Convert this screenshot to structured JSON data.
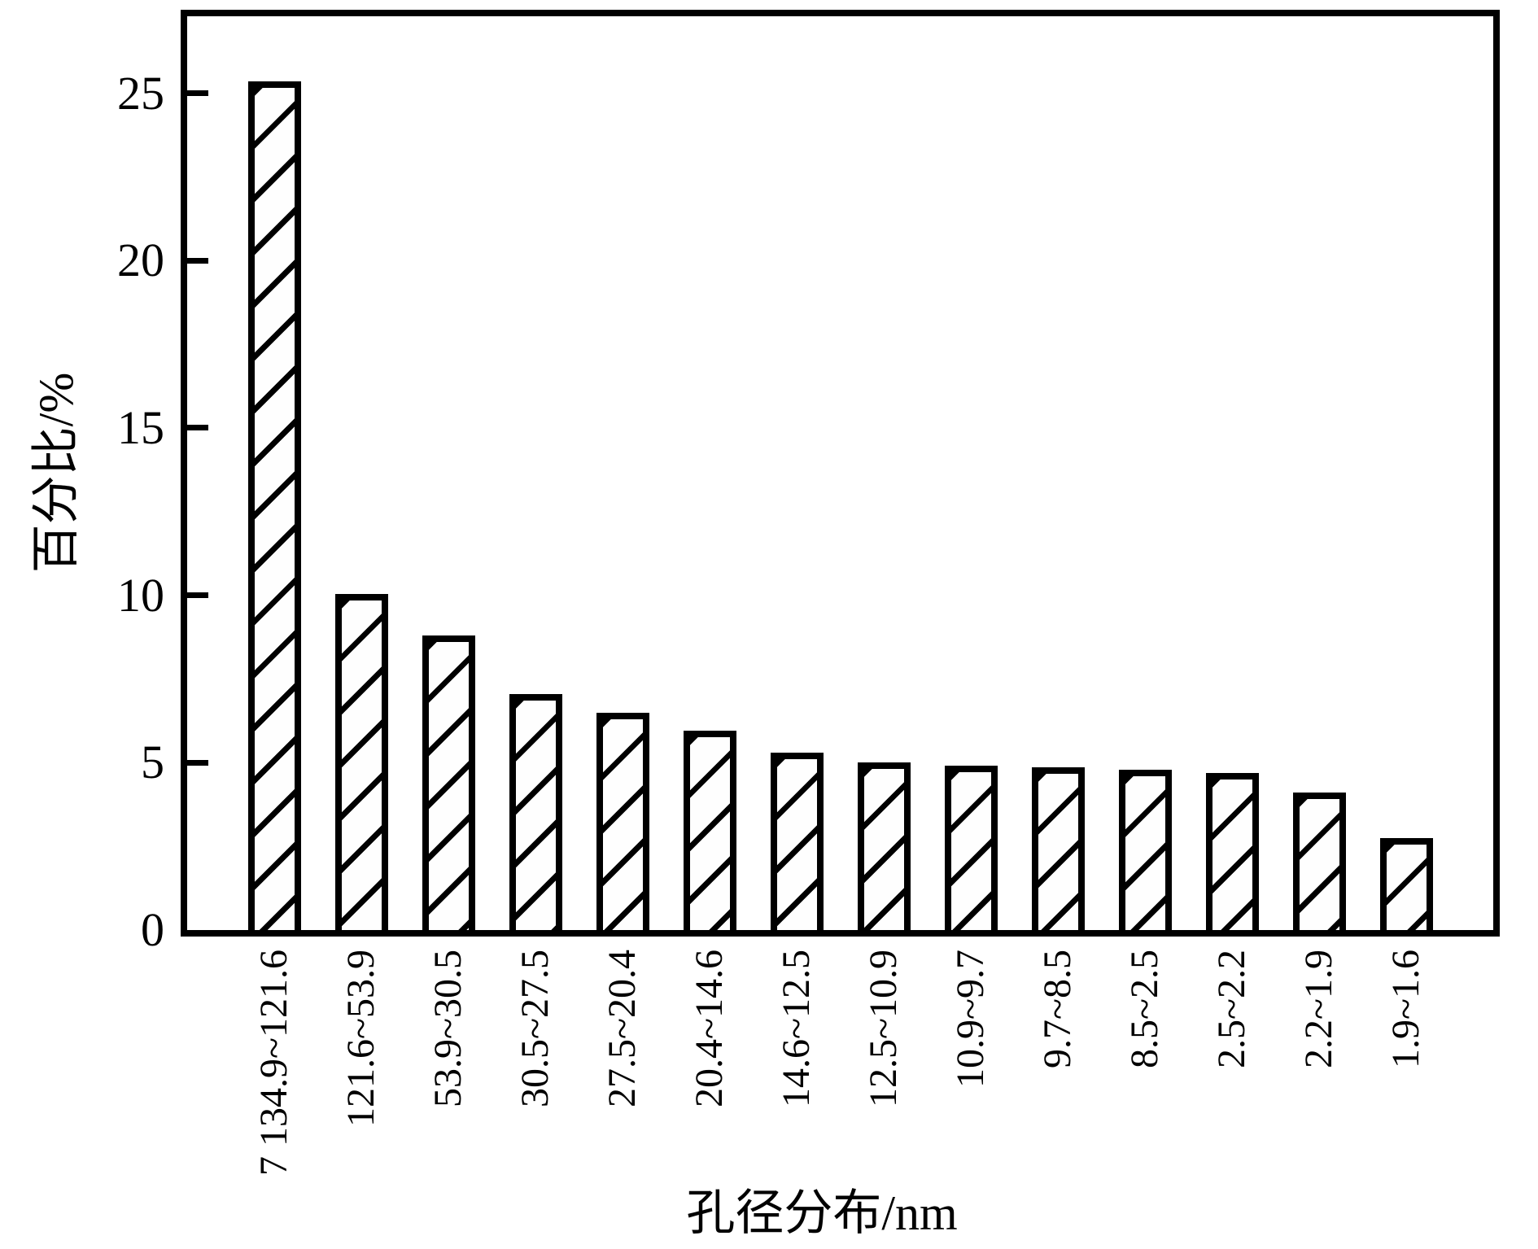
{
  "figure": {
    "background_color": "#ffffff",
    "ink_color": "#000000",
    "bar_fill": "white with forward-diagonal hatch"
  },
  "chart_data": {
    "type": "bar",
    "title": "",
    "xlabel": "孔径分布/nm",
    "ylabel": "百分比/%",
    "categories": [
      "7 134.9~121.6",
      "121.6~53.9",
      "53.9~30.5",
      "30.5~27.5",
      "27.5~20.4",
      "20.4~14.6",
      "14.6~12.5",
      "12.5~10.9",
      "10.9~9.7",
      "9.7~8.5",
      "8.5~2.5",
      "2.5~2.2",
      "2.2~1.9",
      "1.9~1.6"
    ],
    "values": [
      25.35,
      10.05,
      8.8,
      7.05,
      6.5,
      5.95,
      5.3,
      5.0,
      4.9,
      4.85,
      4.8,
      4.7,
      4.1,
      2.75
    ],
    "yticks": [
      0,
      5,
      10,
      15,
      20,
      25
    ],
    "ylim": [
      0,
      27.3
    ],
    "grid": false,
    "legend": null,
    "x_tick_label_rotation_deg": 90,
    "hatch_icon": "forward-diagonal-hatch"
  }
}
